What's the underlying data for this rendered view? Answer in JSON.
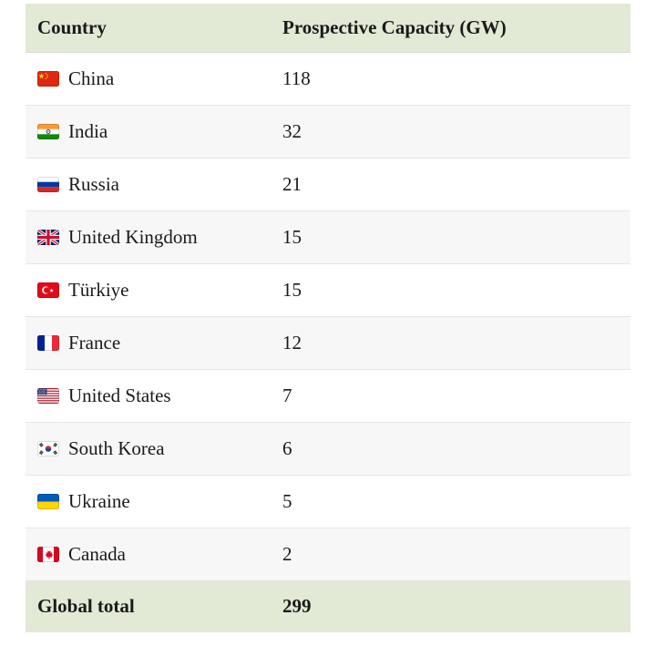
{
  "table": {
    "headers": [
      "Country",
      "Prospective Capacity (GW)"
    ],
    "rows": [
      {
        "flag": "china-flag",
        "country": "China",
        "capacity": "118"
      },
      {
        "flag": "india-flag",
        "country": "India",
        "capacity": "32"
      },
      {
        "flag": "russia-flag",
        "country": "Russia",
        "capacity": "21"
      },
      {
        "flag": "uk-flag",
        "country": "United Kingdom",
        "capacity": "15"
      },
      {
        "flag": "turkiye-flag",
        "country": "Türkiye",
        "capacity": "15"
      },
      {
        "flag": "france-flag",
        "country": "France",
        "capacity": "12"
      },
      {
        "flag": "us-flag",
        "country": "United States",
        "capacity": "7"
      },
      {
        "flag": "south-korea-flag",
        "country": "South Korea",
        "capacity": "6"
      },
      {
        "flag": "ukraine-flag",
        "country": "Ukraine",
        "capacity": "5"
      },
      {
        "flag": "canada-flag",
        "country": "Canada",
        "capacity": "2"
      }
    ],
    "footer": {
      "label": "Global total",
      "value": "299"
    },
    "colors": {
      "header_bg": "#e2e9d5",
      "alt_row_bg": "#f7f7f7",
      "row_border": "#e5e5e5",
      "text": "#1a1a1a",
      "page_bg": "#ffffff"
    }
  },
  "chart_data": {
    "type": "table",
    "title": "",
    "columns": [
      "Country",
      "Prospective Capacity (GW)"
    ],
    "categories": [
      "China",
      "India",
      "Russia",
      "United Kingdom",
      "Türkiye",
      "France",
      "United States",
      "South Korea",
      "Ukraine",
      "Canada"
    ],
    "values": [
      118,
      32,
      21,
      15,
      15,
      12,
      7,
      6,
      5,
      2
    ],
    "total_label": "Global total",
    "total": 299
  }
}
